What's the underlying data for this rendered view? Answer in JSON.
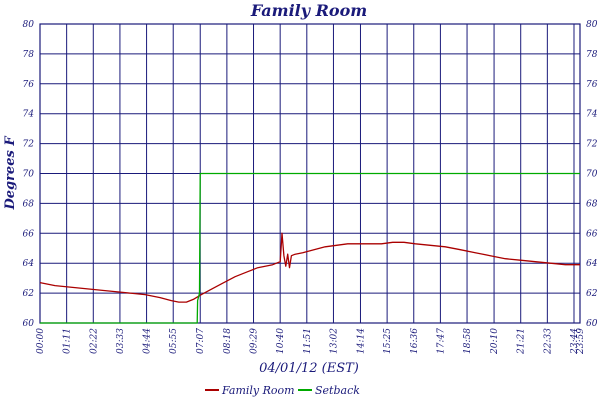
{
  "chart_data": {
    "type": "line",
    "title": "Family Room",
    "ylabel": "Degrees F",
    "xlabel": "04/01/12 (EST)",
    "ylim": [
      60,
      80
    ],
    "yticks": [
      60,
      62,
      64,
      66,
      68,
      70,
      72,
      74,
      76,
      78,
      80
    ],
    "xlim": [
      0,
      1439
    ],
    "xticks": [
      {
        "m": 0,
        "label": "00:00"
      },
      {
        "m": 71,
        "label": "01:11"
      },
      {
        "m": 142,
        "label": "02:22"
      },
      {
        "m": 213,
        "label": "03:33"
      },
      {
        "m": 284,
        "label": "04:44"
      },
      {
        "m": 355,
        "label": "05:55"
      },
      {
        "m": 427,
        "label": "07:07"
      },
      {
        "m": 498,
        "label": "08:18"
      },
      {
        "m": 569,
        "label": "09:29"
      },
      {
        "m": 640,
        "label": "10:40"
      },
      {
        "m": 711,
        "label": "11:51"
      },
      {
        "m": 782,
        "label": "13:02"
      },
      {
        "m": 854,
        "label": "14:14"
      },
      {
        "m": 925,
        "label": "15:25"
      },
      {
        "m": 996,
        "label": "16:36"
      },
      {
        "m": 1067,
        "label": "17:47"
      },
      {
        "m": 1138,
        "label": "18:58"
      },
      {
        "m": 1210,
        "label": "20:10"
      },
      {
        "m": 1281,
        "label": "21:21"
      },
      {
        "m": 1352,
        "label": "22:33"
      },
      {
        "m": 1423,
        "label": "23:44"
      },
      {
        "m": 1439,
        "label": "23:59"
      }
    ],
    "grid": true,
    "legend_position": "bottom-center",
    "series": [
      {
        "name": "Family Room",
        "color": "#aa0000",
        "x": [
          0,
          40,
          80,
          120,
          160,
          200,
          240,
          280,
          320,
          350,
          370,
          390,
          410,
          430,
          460,
          490,
          520,
          550,
          580,
          600,
          620,
          630,
          640,
          645,
          650,
          655,
          660,
          665,
          670,
          680,
          700,
          730,
          760,
          790,
          820,
          850,
          880,
          910,
          940,
          970,
          1000,
          1040,
          1080,
          1120,
          1160,
          1200,
          1240,
          1280,
          1320,
          1360,
          1400,
          1439
        ],
        "y": [
          62.7,
          62.5,
          62.4,
          62.3,
          62.2,
          62.1,
          62.0,
          61.9,
          61.7,
          61.5,
          61.4,
          61.4,
          61.6,
          61.9,
          62.3,
          62.7,
          63.1,
          63.4,
          63.7,
          63.8,
          63.9,
          64.0,
          64.1,
          66.0,
          64.5,
          63.8,
          64.6,
          63.7,
          64.5,
          64.6,
          64.7,
          64.9,
          65.1,
          65.2,
          65.3,
          65.3,
          65.3,
          65.3,
          65.4,
          65.4,
          65.3,
          65.2,
          65.1,
          64.9,
          64.7,
          64.5,
          64.3,
          64.2,
          64.1,
          64.0,
          63.9,
          63.9
        ]
      },
      {
        "name": "Setback",
        "color": "#00aa00",
        "x": [
          0,
          419,
          420,
          425,
          427,
          1439
        ],
        "y": [
          60,
          60,
          61.5,
          62,
          70,
          70
        ]
      }
    ]
  }
}
